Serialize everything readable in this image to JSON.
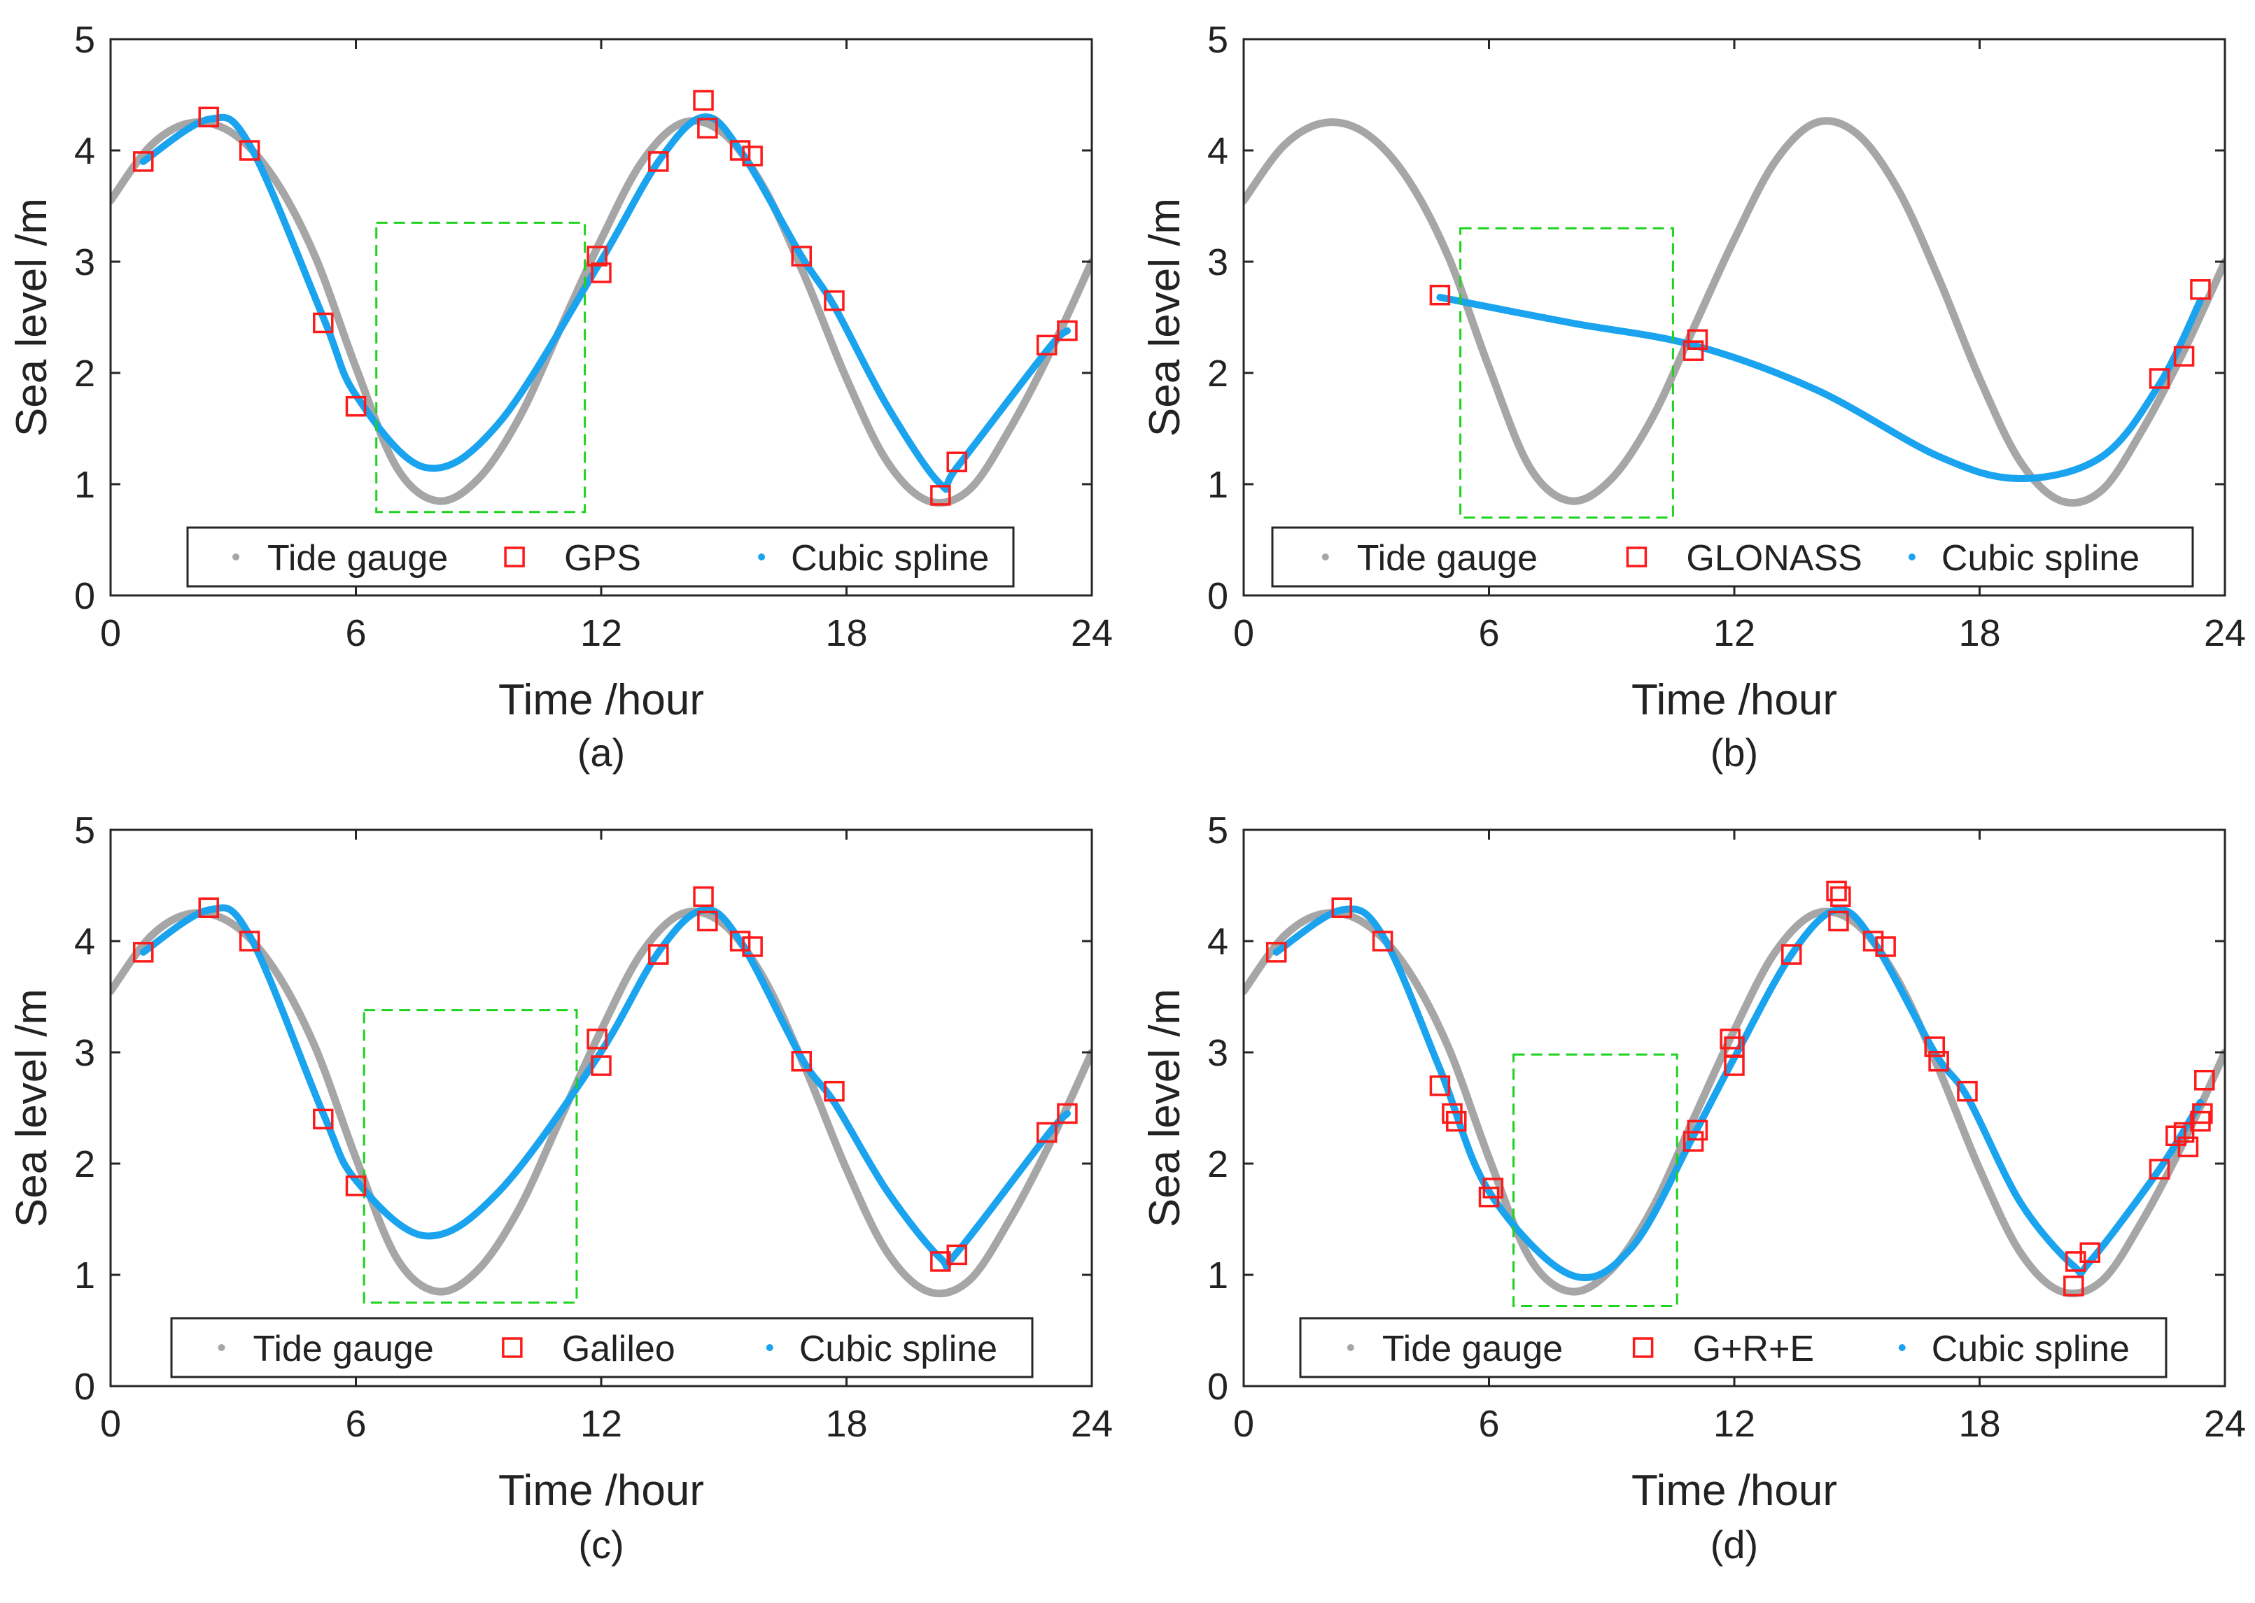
{
  "figure": {
    "description_panels": [
      "(a)",
      "(b)",
      "(c)",
      "(d)"
    ]
  },
  "colors": {
    "tide": "#a6a6a6",
    "marker": "#ff1a1a",
    "spline": "#1aa3ee",
    "box": "#1ed21e",
    "axis": "#262626"
  },
  "chart_data": [
    {
      "type": "line",
      "panel_label": "(a)",
      "xlabel": "Time /hour",
      "ylabel": "Sea level /m",
      "xlim": [
        0,
        24
      ],
      "ylim": [
        0,
        5
      ],
      "xticks": [
        0,
        6,
        12,
        18,
        24
      ],
      "yticks": [
        0,
        1,
        2,
        3,
        4,
        5
      ],
      "legend": [
        "Tide gauge",
        "GPS",
        "Cubic spline"
      ],
      "legend_placement": "bottom-center",
      "tide_gauge": {
        "x": [
          0,
          1,
          2,
          3,
          4,
          5,
          6,
          7,
          8,
          9,
          10,
          11,
          12,
          13,
          14,
          15,
          16,
          17,
          18,
          19,
          20,
          21,
          22,
          23,
          24
        ],
        "y": [
          3.55,
          4.05,
          4.25,
          4.15,
          3.75,
          3.05,
          2.05,
          1.15,
          0.85,
          1.05,
          1.6,
          2.4,
          3.2,
          3.9,
          4.25,
          4.15,
          3.65,
          2.85,
          1.95,
          1.2,
          0.85,
          0.95,
          1.5,
          2.2,
          3.0
        ]
      },
      "observations": {
        "x": [
          0.8,
          2.4,
          3.4,
          5.2,
          6.0,
          11.9,
          12.0,
          13.4,
          14.5,
          14.6,
          15.4,
          15.7,
          16.9,
          17.7,
          20.3,
          20.7,
          22.9,
          23.4
        ],
        "y": [
          3.9,
          4.3,
          4.0,
          2.45,
          1.7,
          3.05,
          2.9,
          3.9,
          4.45,
          4.2,
          4.0,
          3.95,
          3.05,
          2.65,
          0.9,
          1.2,
          2.25,
          2.38
        ]
      },
      "cubic_spline": {
        "x": [
          0.8,
          2.4,
          3.4,
          5.2,
          6.0,
          7.7,
          9.5,
          11.9,
          13.4,
          14.5,
          15.4,
          16.9,
          17.7,
          19.0,
          20.3,
          20.7,
          22.9,
          23.4
        ],
        "y": [
          3.9,
          4.28,
          4.05,
          2.5,
          1.8,
          1.15,
          1.55,
          2.95,
          3.9,
          4.3,
          4.0,
          3.05,
          2.6,
          1.7,
          1.0,
          1.15,
          2.2,
          2.38
        ]
      },
      "gap_box": {
        "x": [
          6.5,
          11.6
        ],
        "y": [
          0.75,
          3.35
        ]
      }
    },
    {
      "type": "line",
      "panel_label": "(b)",
      "xlabel": "Time /hour",
      "ylabel": "Sea level /m",
      "xlim": [
        0,
        24
      ],
      "ylim": [
        0,
        5
      ],
      "xticks": [
        0,
        6,
        12,
        18,
        24
      ],
      "yticks": [
        0,
        1,
        2,
        3,
        4,
        5
      ],
      "legend": [
        "Tide gauge",
        "GLONASS",
        "Cubic spline"
      ],
      "legend_placement": "bottom-center",
      "tide_gauge": {
        "x": [
          0,
          1,
          2,
          3,
          4,
          5,
          6,
          7,
          8,
          9,
          10,
          11,
          12,
          13,
          14,
          15,
          16,
          17,
          18,
          19,
          20,
          21,
          22,
          23,
          24
        ],
        "y": [
          3.55,
          4.05,
          4.25,
          4.15,
          3.75,
          3.05,
          2.05,
          1.15,
          0.85,
          1.05,
          1.6,
          2.4,
          3.2,
          3.9,
          4.25,
          4.15,
          3.65,
          2.85,
          1.95,
          1.2,
          0.85,
          0.95,
          1.5,
          2.2,
          3.0
        ]
      },
      "observations": {
        "x": [
          4.8,
          11.0,
          11.1,
          22.4,
          23.0,
          23.4
        ],
        "y": [
          2.7,
          2.2,
          2.3,
          1.95,
          2.15,
          2.75
        ]
      },
      "cubic_spline": {
        "x": [
          4.8,
          8.0,
          11.0,
          14.0,
          17.0,
          19.0,
          21.0,
          22.4,
          23.4
        ],
        "y": [
          2.68,
          2.45,
          2.25,
          1.85,
          1.25,
          1.05,
          1.25,
          1.9,
          2.65
        ]
      },
      "gap_box": {
        "x": [
          5.3,
          10.5
        ],
        "y": [
          0.7,
          3.3
        ]
      }
    },
    {
      "type": "line",
      "panel_label": "(c)",
      "xlabel": "Time /hour",
      "ylabel": "Sea level /m",
      "xlim": [
        0,
        24
      ],
      "ylim": [
        0,
        5
      ],
      "xticks": [
        0,
        6,
        12,
        18,
        24
      ],
      "yticks": [
        0,
        1,
        2,
        3,
        4,
        5
      ],
      "legend": [
        "Tide gauge",
        "Galileo",
        "Cubic spline"
      ],
      "legend_placement": "bottom-center",
      "tide_gauge": {
        "x": [
          0,
          1,
          2,
          3,
          4,
          5,
          6,
          7,
          8,
          9,
          10,
          11,
          12,
          13,
          14,
          15,
          16,
          17,
          18,
          19,
          20,
          21,
          22,
          23,
          24
        ],
        "y": [
          3.55,
          4.05,
          4.25,
          4.15,
          3.75,
          3.05,
          2.05,
          1.15,
          0.85,
          1.05,
          1.6,
          2.4,
          3.2,
          3.9,
          4.25,
          4.15,
          3.65,
          2.85,
          1.95,
          1.2,
          0.85,
          0.95,
          1.5,
          2.2,
          3.0
        ]
      },
      "observations": {
        "x": [
          0.8,
          2.4,
          3.4,
          5.2,
          6.0,
          11.9,
          12.0,
          13.4,
          14.5,
          14.6,
          15.4,
          15.7,
          16.9,
          17.7,
          20.3,
          20.7,
          22.9,
          23.4
        ],
        "y": [
          3.9,
          4.3,
          4.0,
          2.4,
          1.8,
          3.12,
          2.88,
          3.88,
          4.4,
          4.18,
          4.0,
          3.95,
          2.92,
          2.65,
          1.12,
          1.18,
          2.28,
          2.45
        ]
      },
      "cubic_spline": {
        "x": [
          0.8,
          2.4,
          3.4,
          5.2,
          6.0,
          7.7,
          9.5,
          11.9,
          13.4,
          14.5,
          15.4,
          16.9,
          17.7,
          19.0,
          20.3,
          20.7,
          22.9,
          23.4
        ],
        "y": [
          3.9,
          4.28,
          4.05,
          2.45,
          1.85,
          1.35,
          1.75,
          2.95,
          3.9,
          4.28,
          4.0,
          2.95,
          2.55,
          1.75,
          1.15,
          1.2,
          2.25,
          2.45
        ]
      },
      "gap_box": {
        "x": [
          6.2,
          11.4
        ],
        "y": [
          0.75,
          3.38
        ]
      }
    },
    {
      "type": "line",
      "panel_label": "(d)",
      "xlabel": "Time /hour",
      "ylabel": "Sea level /m",
      "xlim": [
        0,
        24
      ],
      "ylim": [
        0,
        5
      ],
      "xticks": [
        0,
        6,
        12,
        18,
        24
      ],
      "yticks": [
        0,
        1,
        2,
        3,
        4,
        5
      ],
      "legend": [
        "Tide gauge",
        "G+R+E",
        "Cubic spline"
      ],
      "legend_placement": "bottom-center",
      "tide_gauge": {
        "x": [
          0,
          1,
          2,
          3,
          4,
          5,
          6,
          7,
          8,
          9,
          10,
          11,
          12,
          13,
          14,
          15,
          16,
          17,
          18,
          19,
          20,
          21,
          22,
          23,
          24
        ],
        "y": [
          3.55,
          4.05,
          4.25,
          4.15,
          3.75,
          3.05,
          2.05,
          1.15,
          0.85,
          1.05,
          1.6,
          2.4,
          3.2,
          3.9,
          4.25,
          4.15,
          3.65,
          2.85,
          1.95,
          1.2,
          0.85,
          0.95,
          1.5,
          2.2,
          3.0
        ]
      },
      "observations": {
        "x": [
          0.8,
          2.4,
          3.4,
          4.8,
          5.1,
          5.2,
          6.0,
          6.1,
          11.0,
          11.1,
          11.9,
          12.0,
          12.0,
          13.4,
          14.5,
          14.6,
          14.55,
          15.4,
          15.7,
          16.9,
          17.0,
          17.7,
          20.3,
          20.35,
          20.7,
          22.4,
          22.8,
          23.0,
          23.1,
          23.4,
          23.45,
          23.5
        ],
        "y": [
          3.9,
          4.3,
          4.0,
          2.7,
          2.45,
          2.38,
          1.7,
          1.78,
          2.2,
          2.3,
          3.12,
          3.05,
          2.88,
          3.88,
          4.45,
          4.4,
          4.18,
          4.0,
          3.95,
          3.05,
          2.92,
          2.65,
          0.9,
          1.12,
          1.2,
          1.95,
          2.25,
          2.28,
          2.15,
          2.38,
          2.45,
          2.75
        ]
      },
      "cubic_spline": {
        "x": [
          0.8,
          2.4,
          3.4,
          4.8,
          6.0,
          8.0,
          9.5,
          11.0,
          12.0,
          13.4,
          14.5,
          15.4,
          16.9,
          17.7,
          19.0,
          20.3,
          20.7,
          22.4,
          23.4
        ],
        "y": [
          3.9,
          4.28,
          4.05,
          2.85,
          1.75,
          1.0,
          1.25,
          2.25,
          2.95,
          3.88,
          4.28,
          4.0,
          3.0,
          2.6,
          1.65,
          1.08,
          1.12,
          1.95,
          2.55
        ]
      },
      "gap_box": {
        "x": [
          6.6,
          10.6
        ],
        "y": [
          0.72,
          2.98
        ]
      }
    }
  ]
}
